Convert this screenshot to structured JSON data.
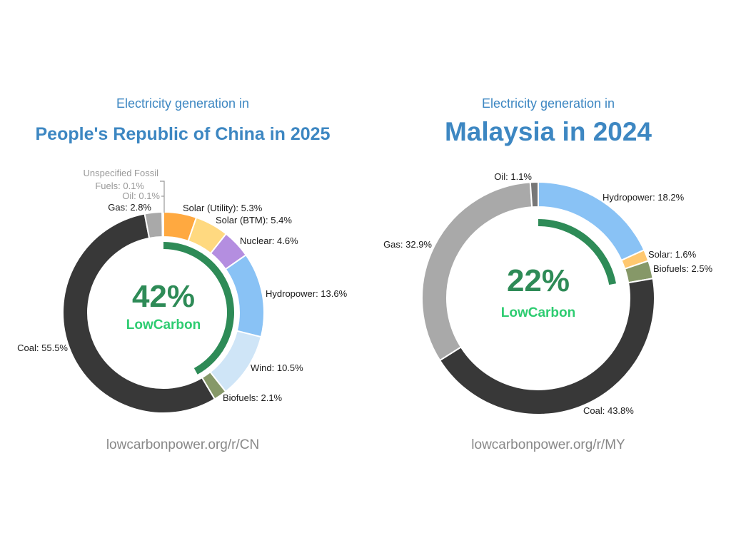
{
  "chart_data": [
    {
      "type": "pie",
      "pretitle": "Electricity generation in",
      "title": "People's Republic of China in 2025",
      "low_carbon_share": "42%",
      "brand": "LowCarbon",
      "source": "lowcarbonpower.org/r/CN",
      "slices": [
        {
          "label": "Solar (Utility)",
          "value": 5.3,
          "color": "#ffa940"
        },
        {
          "label": "Solar (BTM)",
          "value": 5.4,
          "color": "#ffd980"
        },
        {
          "label": "Nuclear",
          "value": 4.6,
          "color": "#b48ee0"
        },
        {
          "label": "Hydropower",
          "value": 13.6,
          "color": "#89c2f5"
        },
        {
          "label": "Wind",
          "value": 10.5,
          "color": "#cfe5f7"
        },
        {
          "label": "Biofuels",
          "value": 2.1,
          "color": "#869868"
        },
        {
          "label": "Coal",
          "value": 55.5,
          "color": "#383838"
        },
        {
          "label": "Gas",
          "value": 2.8,
          "color": "#a9a9a9"
        },
        {
          "label": "Oil",
          "value": 0.1,
          "color": "#888888"
        },
        {
          "label": "Unspecified Fossil Fuels",
          "value": 0.1,
          "color": "#777777"
        }
      ],
      "slice_labels": {
        "solar_utility": "Solar (Utility): 5.3%",
        "solar_btm": "Solar (BTM): 5.4%",
        "nuclear": "Nuclear: 4.6%",
        "hydropower": "Hydropower: 13.6%",
        "wind": "Wind: 10.5%",
        "biofuels": "Biofuels: 2.1%",
        "coal": "Coal: 55.5%",
        "gas": "Gas: 2.8%",
        "oil": "Oil: 0.1%",
        "unspecified_line1": "Unspecified Fossil",
        "unspecified_line2": "Fuels: 0.1%"
      },
      "low_carbon_arc_percent": 42,
      "low_carbon_arc_color": "#2e8b57"
    },
    {
      "type": "pie",
      "pretitle": "Electricity generation in",
      "title": "Malaysia in 2024",
      "low_carbon_share": "22%",
      "brand": "LowCarbon",
      "source": "lowcarbonpower.org/r/MY",
      "slices": [
        {
          "label": "Hydropower",
          "value": 18.2,
          "color": "#89c2f5"
        },
        {
          "label": "Solar",
          "value": 1.6,
          "color": "#ffc870"
        },
        {
          "label": "Biofuels",
          "value": 2.5,
          "color": "#869868"
        },
        {
          "label": "Coal",
          "value": 43.8,
          "color": "#383838"
        },
        {
          "label": "Gas",
          "value": 32.9,
          "color": "#a9a9a9"
        },
        {
          "label": "Oil",
          "value": 1.1,
          "color": "#777777"
        }
      ],
      "slice_labels": {
        "hydropower": "Hydropower: 18.2%",
        "solar": "Solar: 1.6%",
        "biofuels": "Biofuels: 2.5%",
        "coal": "Coal: 43.8%",
        "gas": "Gas: 32.9%",
        "oil": "Oil: 1.1%"
      },
      "low_carbon_arc_percent": 22,
      "low_carbon_arc_color": "#2e8b57"
    }
  ]
}
